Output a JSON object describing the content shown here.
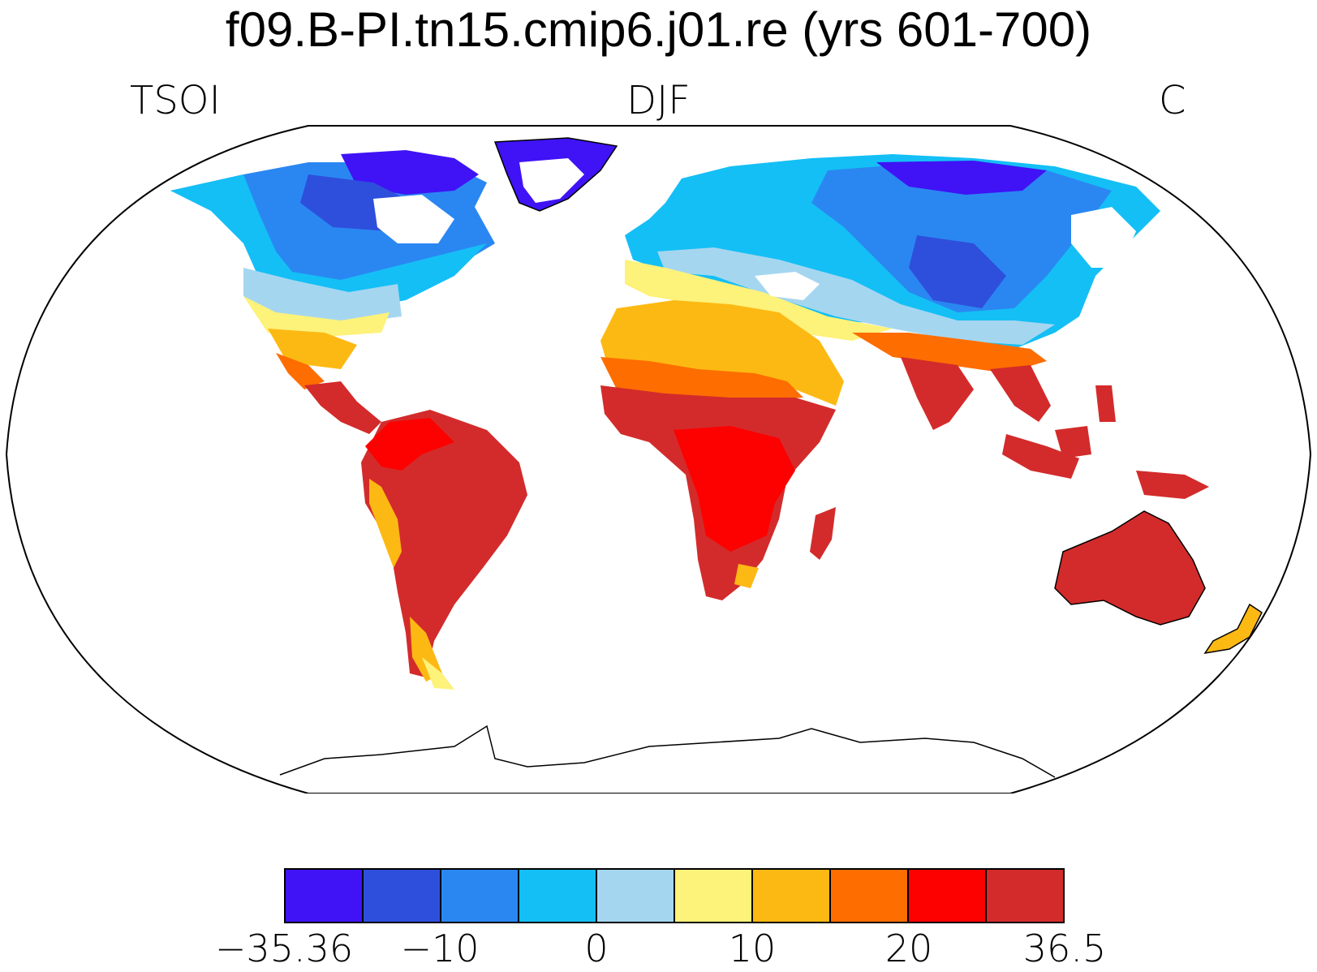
{
  "title": "f09.B-PI.tn15.cmip6.j01.re (yrs 601-700)",
  "subtitle_left": "TSOI",
  "subtitle_center": "DJF",
  "subtitle_right": "C",
  "projection": "Robinson",
  "colorbar": {
    "colors": [
      "#3f13f5",
      "#2e4fdc",
      "#2a87f2",
      "#14bff5",
      "#a5d6f0",
      "#fdf27a",
      "#fdb913",
      "#fe6d00",
      "#fd0000",
      "#d32b2b"
    ],
    "tick_labels": [
      "−35.36",
      "−10",
      "0",
      "10",
      "20",
      "36.5"
    ]
  }
}
